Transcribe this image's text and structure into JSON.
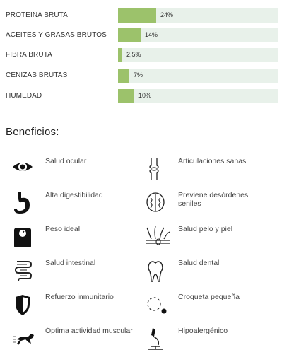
{
  "nutrition": [
    {
      "label": "PROTEINA BRUTA",
      "value_text": "24%",
      "value": 24
    },
    {
      "label": "ACEITES Y GRASAS BRUTOS",
      "value_text": "14%",
      "value": 14
    },
    {
      "label": "FIBRA BRUTA",
      "value_text": "2,5%",
      "value": 2.5
    },
    {
      "label": "CENIZAS BRUTAS",
      "value_text": "7%",
      "value": 7
    },
    {
      "label": "HUMEDAD",
      "value_text": "10%",
      "value": 10
    }
  ],
  "bar_scale_max": 100,
  "colors": {
    "fill": "#9cc26b",
    "track": "#e8f1ea"
  },
  "benefits_title": "Beneficios:",
  "benefits": [
    {
      "label": "Salud ocular",
      "icon": "eye-icon"
    },
    {
      "label": "Articulaciones sanas",
      "icon": "joint-icon"
    },
    {
      "label": "Alta digestibilidad",
      "icon": "stomach-icon"
    },
    {
      "label": "Previene desórdenes seniles",
      "icon": "brain-icon"
    },
    {
      "label": "Peso ideal",
      "icon": "scale-icon"
    },
    {
      "label": "Salud pelo y piel",
      "icon": "skin-hair-icon"
    },
    {
      "label": "Salud intestinal",
      "icon": "intestine-icon"
    },
    {
      "label": "Salud dental",
      "icon": "tooth-icon"
    },
    {
      "label": "Refuerzo inmunitario",
      "icon": "shield-icon"
    },
    {
      "label": "Croqueta pequeña",
      "icon": "kibble-icon"
    },
    {
      "label": "Óptima actividad muscular",
      "icon": "running-dog-icon"
    },
    {
      "label": "Hipoalergénico",
      "icon": "microscope-icon"
    }
  ]
}
